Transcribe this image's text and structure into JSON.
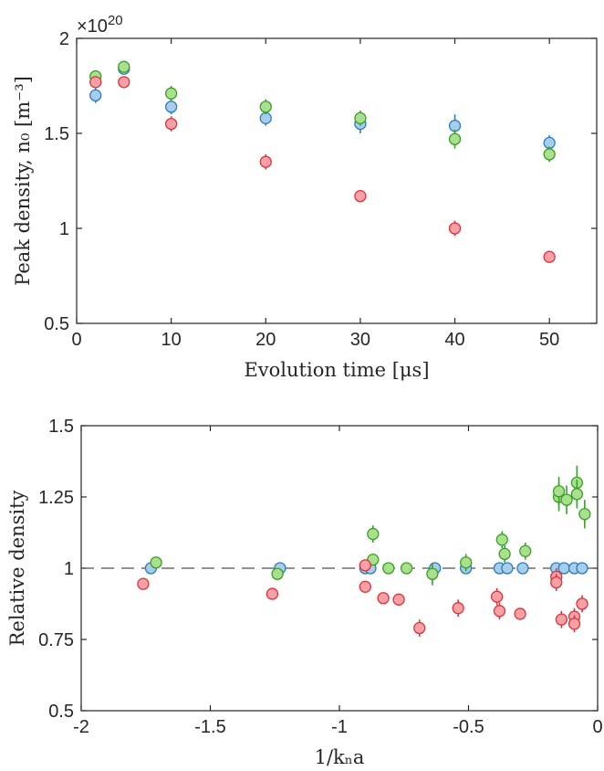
{
  "colors": {
    "blue_fill": "#a6cdea",
    "blue_edge": "#2b7bbf",
    "green_fill": "#a8e08c",
    "green_edge": "#3a9e2a",
    "red_fill": "#f7a0a5",
    "red_edge": "#e0303a"
  },
  "chart_data": [
    {
      "type": "scatter",
      "multiplier": "×10",
      "multiplier_exp": "20",
      "xlabel": "Evolution time [μs]",
      "ylabel": "Peak density, n₀ [m⁻³]",
      "xlim": [
        0,
        55
      ],
      "ylim": [
        0.5,
        2
      ],
      "x_ticks": [
        0,
        10,
        20,
        30,
        40,
        50
      ],
      "x_tick_labels": [
        "0",
        "10",
        "20",
        "30",
        "40",
        "50"
      ],
      "y_ticks": [
        0.5,
        1,
        1.5,
        2
      ],
      "y_tick_labels": [
        "0.5",
        "1",
        "1.5",
        "2"
      ],
      "series": [
        {
          "color": "blue",
          "points": [
            {
              "x": 2,
              "y": 1.7,
              "err": 0.04
            },
            {
              "x": 5,
              "y": 1.84,
              "err": 0.03
            },
            {
              "x": 10,
              "y": 1.64,
              "err": 0.04
            },
            {
              "x": 20,
              "y": 1.58,
              "err": 0.04
            },
            {
              "x": 30,
              "y": 1.55,
              "err": 0.05
            },
            {
              "x": 40,
              "y": 1.54,
              "err": 0.06
            },
            {
              "x": 50,
              "y": 1.45,
              "err": 0.04
            }
          ]
        },
        {
          "color": "green",
          "points": [
            {
              "x": 2,
              "y": 1.8,
              "err": 0.03
            },
            {
              "x": 5,
              "y": 1.85,
              "err": 0.03
            },
            {
              "x": 10,
              "y": 1.71,
              "err": 0.04
            },
            {
              "x": 20,
              "y": 1.64,
              "err": 0.04
            },
            {
              "x": 30,
              "y": 1.58,
              "err": 0.04
            },
            {
              "x": 40,
              "y": 1.47,
              "err": 0.05
            },
            {
              "x": 50,
              "y": 1.39,
              "err": 0.04
            }
          ]
        },
        {
          "color": "red",
          "points": [
            {
              "x": 2,
              "y": 1.77,
              "err": 0.03
            },
            {
              "x": 5,
              "y": 1.77,
              "err": 0.03
            },
            {
              "x": 10,
              "y": 1.55,
              "err": 0.04
            },
            {
              "x": 20,
              "y": 1.35,
              "err": 0.04
            },
            {
              "x": 30,
              "y": 1.17,
              "err": 0.03
            },
            {
              "x": 40,
              "y": 1.0,
              "err": 0.04
            },
            {
              "x": 50,
              "y": 0.85,
              "err": 0.03
            }
          ]
        }
      ]
    },
    {
      "type": "scatter",
      "xlabel": "1/kₙa",
      "ylabel": "Relative density",
      "xlim": [
        -2,
        0
      ],
      "ylim": [
        0.5,
        1.5
      ],
      "x_ticks": [
        -2,
        -1.5,
        -1,
        -0.5,
        0
      ],
      "x_tick_labels": [
        "-2",
        "-1.5",
        "-1",
        "-0.5",
        "0"
      ],
      "y_ticks": [
        0.5,
        0.75,
        1,
        1.25,
        1.5
      ],
      "y_tick_labels": [
        "0.5",
        "0.75",
        "1",
        "1.25",
        "1.5"
      ],
      "reference_line": 1,
      "series": [
        {
          "color": "blue",
          "points": [
            {
              "x": -1.73,
              "y": 1.0,
              "err": 0
            },
            {
              "x": -1.23,
              "y": 1.0,
              "err": 0
            },
            {
              "x": -0.9,
              "y": 1.0,
              "err": 0
            },
            {
              "x": -0.88,
              "y": 1.0,
              "err": 0
            },
            {
              "x": -0.63,
              "y": 1.0,
              "err": 0
            },
            {
              "x": -0.51,
              "y": 1.0,
              "err": 0
            },
            {
              "x": -0.38,
              "y": 1.0,
              "err": 0
            },
            {
              "x": -0.35,
              "y": 1.0,
              "err": 0
            },
            {
              "x": -0.29,
              "y": 1.0,
              "err": 0
            },
            {
              "x": -0.16,
              "y": 1.0,
              "err": 0
            },
            {
              "x": -0.13,
              "y": 1.0,
              "err": 0
            },
            {
              "x": -0.09,
              "y": 1.0,
              "err": 0
            },
            {
              "x": -0.06,
              "y": 1.0,
              "err": 0
            }
          ]
        },
        {
          "color": "green",
          "points": [
            {
              "x": -1.71,
              "y": 1.02,
              "err": 0
            },
            {
              "x": -1.24,
              "y": 0.98,
              "err": 0.02
            },
            {
              "x": -0.87,
              "y": 1.12,
              "err": 0.03
            },
            {
              "x": -0.87,
              "y": 1.03,
              "err": 0.02
            },
            {
              "x": -0.81,
              "y": 1.0,
              "err": 0.02
            },
            {
              "x": -0.74,
              "y": 1.0,
              "err": 0.02
            },
            {
              "x": -0.64,
              "y": 0.98,
              "err": 0.04
            },
            {
              "x": -0.51,
              "y": 1.02,
              "err": 0.03
            },
            {
              "x": -0.37,
              "y": 1.1,
              "err": 0.03
            },
            {
              "x": -0.36,
              "y": 1.05,
              "err": 0.03
            },
            {
              "x": -0.28,
              "y": 1.06,
              "err": 0.03
            },
            {
              "x": -0.15,
              "y": 1.25,
              "err": 0.05
            },
            {
              "x": -0.15,
              "y": 1.27,
              "err": 0.05
            },
            {
              "x": -0.12,
              "y": 1.24,
              "err": 0.05
            },
            {
              "x": -0.08,
              "y": 1.3,
              "err": 0.06
            },
            {
              "x": -0.08,
              "y": 1.26,
              "err": 0.05
            },
            {
              "x": -0.05,
              "y": 1.19,
              "err": 0.05
            }
          ]
        },
        {
          "color": "red",
          "points": [
            {
              "x": -1.76,
              "y": 0.945,
              "err": 0
            },
            {
              "x": -1.26,
              "y": 0.91,
              "err": 0.02
            },
            {
              "x": -0.9,
              "y": 1.01,
              "err": 0.02
            },
            {
              "x": -0.9,
              "y": 0.935,
              "err": 0.02
            },
            {
              "x": -0.83,
              "y": 0.895,
              "err": 0.02
            },
            {
              "x": -0.77,
              "y": 0.89,
              "err": 0.02
            },
            {
              "x": -0.69,
              "y": 0.79,
              "err": 0.03
            },
            {
              "x": -0.54,
              "y": 0.86,
              "err": 0.03
            },
            {
              "x": -0.39,
              "y": 0.9,
              "err": 0.03
            },
            {
              "x": -0.38,
              "y": 0.85,
              "err": 0.03
            },
            {
              "x": -0.3,
              "y": 0.84,
              "err": 0.02
            },
            {
              "x": -0.16,
              "y": 0.97,
              "err": 0.03
            },
            {
              "x": -0.16,
              "y": 0.95,
              "err": 0.03
            },
            {
              "x": -0.14,
              "y": 0.82,
              "err": 0.03
            },
            {
              "x": -0.09,
              "y": 0.83,
              "err": 0.03
            },
            {
              "x": -0.09,
              "y": 0.805,
              "err": 0.03
            },
            {
              "x": -0.06,
              "y": 0.875,
              "err": 0.03
            }
          ]
        }
      ]
    }
  ]
}
